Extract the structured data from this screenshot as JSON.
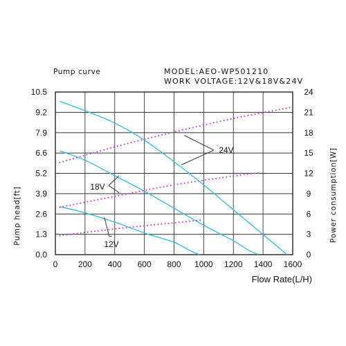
{
  "header": {
    "title": "Pump curve",
    "model": "MODEL:AEO-WP501210",
    "work_voltage": "WORK VOLTAGE:12V&18V&24V"
  },
  "chart_data": {
    "type": "line",
    "xlabel": "Flow Rate(L/H)",
    "ylabel": "Pump head[ft]",
    "y2label": "Power consumption[W]",
    "xlim": [
      0,
      1600
    ],
    "ylim": [
      0,
      10.5
    ],
    "y2lim": [
      0,
      24
    ],
    "xticks": [
      0,
      200,
      400,
      600,
      800,
      1000,
      1200,
      1400,
      1600
    ],
    "yticks": [
      "0.0",
      "1.3",
      "2.6",
      "3.9",
      "5.2",
      "6.6",
      "7.9",
      "9.2",
      "10.5"
    ],
    "y2ticks": [
      0,
      3,
      6,
      9,
      12,
      15,
      18,
      21,
      24
    ],
    "grid": true,
    "head_series": [
      {
        "name": "24V",
        "color": "#3cb8d8",
        "x": [
          30,
          200,
          400,
          600,
          800,
          1000,
          1200,
          1400,
          1500,
          1560
        ],
        "y": [
          9.9,
          9.3,
          8.5,
          7.4,
          6.0,
          4.5,
          2.9,
          1.3,
          0.5,
          0.0
        ]
      },
      {
        "name": "18V",
        "color": "#3cb8d8",
        "x": [
          30,
          200,
          400,
          600,
          800,
          1000,
          1200,
          1300,
          1370
        ],
        "y": [
          6.7,
          6.1,
          5.1,
          4.1,
          3.0,
          1.9,
          0.9,
          0.3,
          0.0
        ]
      },
      {
        "name": "12V",
        "color": "#3cb8d8",
        "x": [
          30,
          200,
          400,
          600,
          800,
          900,
          970
        ],
        "y": [
          3.1,
          2.7,
          2.1,
          1.4,
          0.8,
          0.3,
          0.0
        ]
      }
    ],
    "power_series": [
      {
        "name": "24V",
        "color": "#c040c8",
        "x": [
          30,
          400,
          800,
          1200,
          1580
        ],
        "y": [
          13.6,
          15.9,
          18.1,
          20.1,
          21.7
        ]
      },
      {
        "name": "18V",
        "color": "#c040c8",
        "x": [
          30,
          400,
          800,
          1200,
          1380
        ],
        "y": [
          7.0,
          8.6,
          10.3,
          11.6,
          12.1
        ]
      },
      {
        "name": "12V",
        "color": "#c040c8",
        "x": [
          30,
          400,
          800,
          980
        ],
        "y": [
          2.8,
          3.8,
          4.7,
          5.1
        ]
      }
    ],
    "annotations": [
      {
        "label": "24V",
        "targets": [
          [
            870,
            7.7
          ],
          [
            850,
            5.8
          ]
        ]
      },
      {
        "label": "18V",
        "targets": [
          [
            430,
            5.1
          ],
          [
            430,
            4.0
          ]
        ]
      },
      {
        "label": "12V",
        "targets": [
          [
            330,
            2.4
          ],
          [
            380,
            1.2
          ]
        ]
      }
    ]
  }
}
